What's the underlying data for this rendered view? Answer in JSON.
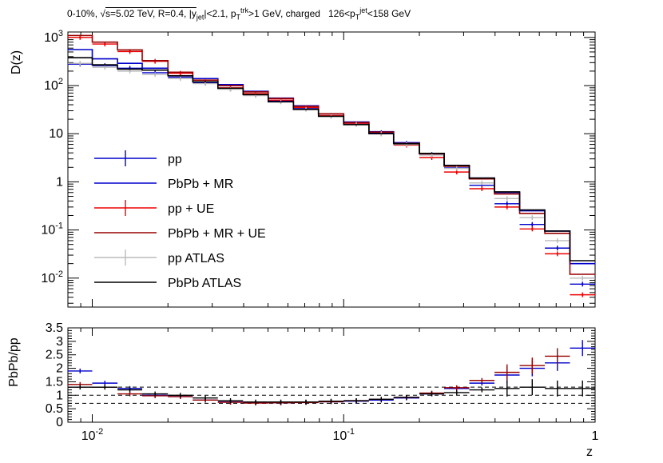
{
  "header": {
    "cent": "0-10%,",
    "sqrt_sign": "√",
    "energy": "s=5.02 TeV, R=0.4, |y",
    "jet_sub": "jet",
    "eta_cut": "|<2.1, p",
    "trk_sup": "trk",
    "T_sub": "T",
    "pt_cut": ">1 GeV, charged",
    "pt_range_pre": "126<p",
    "jet_sup": "jet",
    "pt_range_post": "<158 GeV"
  },
  "chart_data": [
    {
      "type": "line",
      "panel": "top",
      "ylabel": "D(z)",
      "yscale": "log",
      "ylim": [
        0.0025,
        1300
      ],
      "xlim": [
        0.008,
        1
      ],
      "xscale": "log",
      "y_tick_labels": [
        "10^-2",
        "10^-1",
        "1",
        "10",
        "10^2",
        "10^3"
      ],
      "legend_position": "left",
      "bin_edges": [
        0.008,
        0.01,
        0.0126,
        0.0158,
        0.02,
        0.0251,
        0.0316,
        0.0398,
        0.0501,
        0.0631,
        0.0794,
        0.1,
        0.126,
        0.158,
        0.2,
        0.251,
        0.316,
        0.398,
        0.501,
        0.631,
        0.794,
        1.0
      ],
      "series": [
        {
          "name": "pp",
          "color": "#0000cc",
          "style": "points",
          "values": [
            280,
            260,
            230,
            185,
            150,
            115,
            85,
            65,
            48,
            34,
            24,
            16,
            10.5,
            6.3,
            3.7,
            1.95,
            0.85,
            0.35,
            0.13,
            0.042,
            0.0075
          ]
        },
        {
          "name": "PbPb + MR",
          "color": "#0000cc",
          "style": "hist",
          "values": [
            560,
            360,
            290,
            230,
            190,
            140,
            105,
            76,
            55,
            38,
            26,
            17.5,
            11,
            6.5,
            3.9,
            2.2,
            1.2,
            0.6,
            0.25,
            0.095,
            0.02
          ]
        },
        {
          "name": "pp + UE",
          "color": "#ee0000",
          "style": "points",
          "values": [
            1000,
            730,
            510,
            320,
            180,
            120,
            90,
            68,
            50,
            35,
            24,
            16,
            10,
            5.8,
            3.2,
            1.6,
            0.72,
            0.3,
            0.105,
            0.032,
            0.0045
          ]
        },
        {
          "name": "PbPb + MR + UE",
          "color": "#990000",
          "style": "hist",
          "values": [
            1100,
            800,
            550,
            330,
            190,
            130,
            100,
            74,
            54,
            37,
            26,
            17,
            10.8,
            6.3,
            3.8,
            2.1,
            1.15,
            0.56,
            0.22,
            0.085,
            0.012
          ]
        },
        {
          "name": "pp ATLAS",
          "color": "#bbbbbb",
          "style": "points",
          "values": [
            290,
            240,
            200,
            170,
            140,
            110,
            84,
            62,
            46,
            32,
            23,
            15.5,
            10,
            6,
            3.6,
            1.9,
            0.95,
            0.45,
            0.18,
            0.06,
            0.01
          ]
        },
        {
          "name": "PbPb ATLAS",
          "color": "#000000",
          "style": "hist",
          "values": [
            380,
            270,
            220,
            210,
            160,
            120,
            88,
            65,
            46,
            32,
            23,
            15.5,
            10,
            6.2,
            3.9,
            2.2,
            1.2,
            0.62,
            0.26,
            0.095,
            0.023
          ]
        }
      ]
    },
    {
      "type": "line",
      "panel": "bottom",
      "ylabel": "PbPb/pp",
      "xlabel": "z",
      "xscale": "log",
      "xlim": [
        0.008,
        1
      ],
      "ylim": [
        0,
        3.5
      ],
      "y_tick_labels": [
        "0",
        "0.5",
        "1",
        "1.5",
        "2",
        "2.5",
        "3",
        "3.5"
      ],
      "x_tick_labels": [
        "10^-2",
        "10^-1",
        "1"
      ],
      "reference_lines": [
        0.7,
        1.0,
        1.3
      ],
      "bin_edges": [
        0.008,
        0.01,
        0.0126,
        0.0158,
        0.02,
        0.0251,
        0.0316,
        0.0398,
        0.0501,
        0.0631,
        0.0794,
        0.1,
        0.126,
        0.158,
        0.2,
        0.251,
        0.316,
        0.398,
        0.501,
        0.631,
        0.794,
        1.0
      ],
      "series": [
        {
          "name": "PbPb + MR / pp",
          "color": "#0000cc",
          "values": [
            1.9,
            1.45,
            1.25,
            1.0,
            0.95,
            0.82,
            0.75,
            0.72,
            0.72,
            0.74,
            0.76,
            0.78,
            0.82,
            0.9,
            1.05,
            1.25,
            1.45,
            1.75,
            2.0,
            2.2,
            2.75
          ]
        },
        {
          "name": "PbPb + MR + UE / pp + UE",
          "color": "#990000",
          "values": [
            1.4,
            1.3,
            1.05,
            0.98,
            0.95,
            0.82,
            0.74,
            0.71,
            0.72,
            0.73,
            0.76,
            0.8,
            0.85,
            0.92,
            1.08,
            1.28,
            1.55,
            1.85,
            2.1,
            2.45,
            null
          ]
        },
        {
          "name": "PbPb ATLAS / pp ATLAS",
          "color": "#000000",
          "values": [
            1.3,
            1.3,
            1.2,
            1.05,
            1.0,
            0.9,
            0.8,
            0.75,
            0.75,
            0.75,
            0.78,
            0.8,
            0.85,
            0.92,
            1.05,
            1.1,
            1.2,
            1.25,
            1.3,
            1.25,
            1.25
          ]
        }
      ]
    }
  ]
}
